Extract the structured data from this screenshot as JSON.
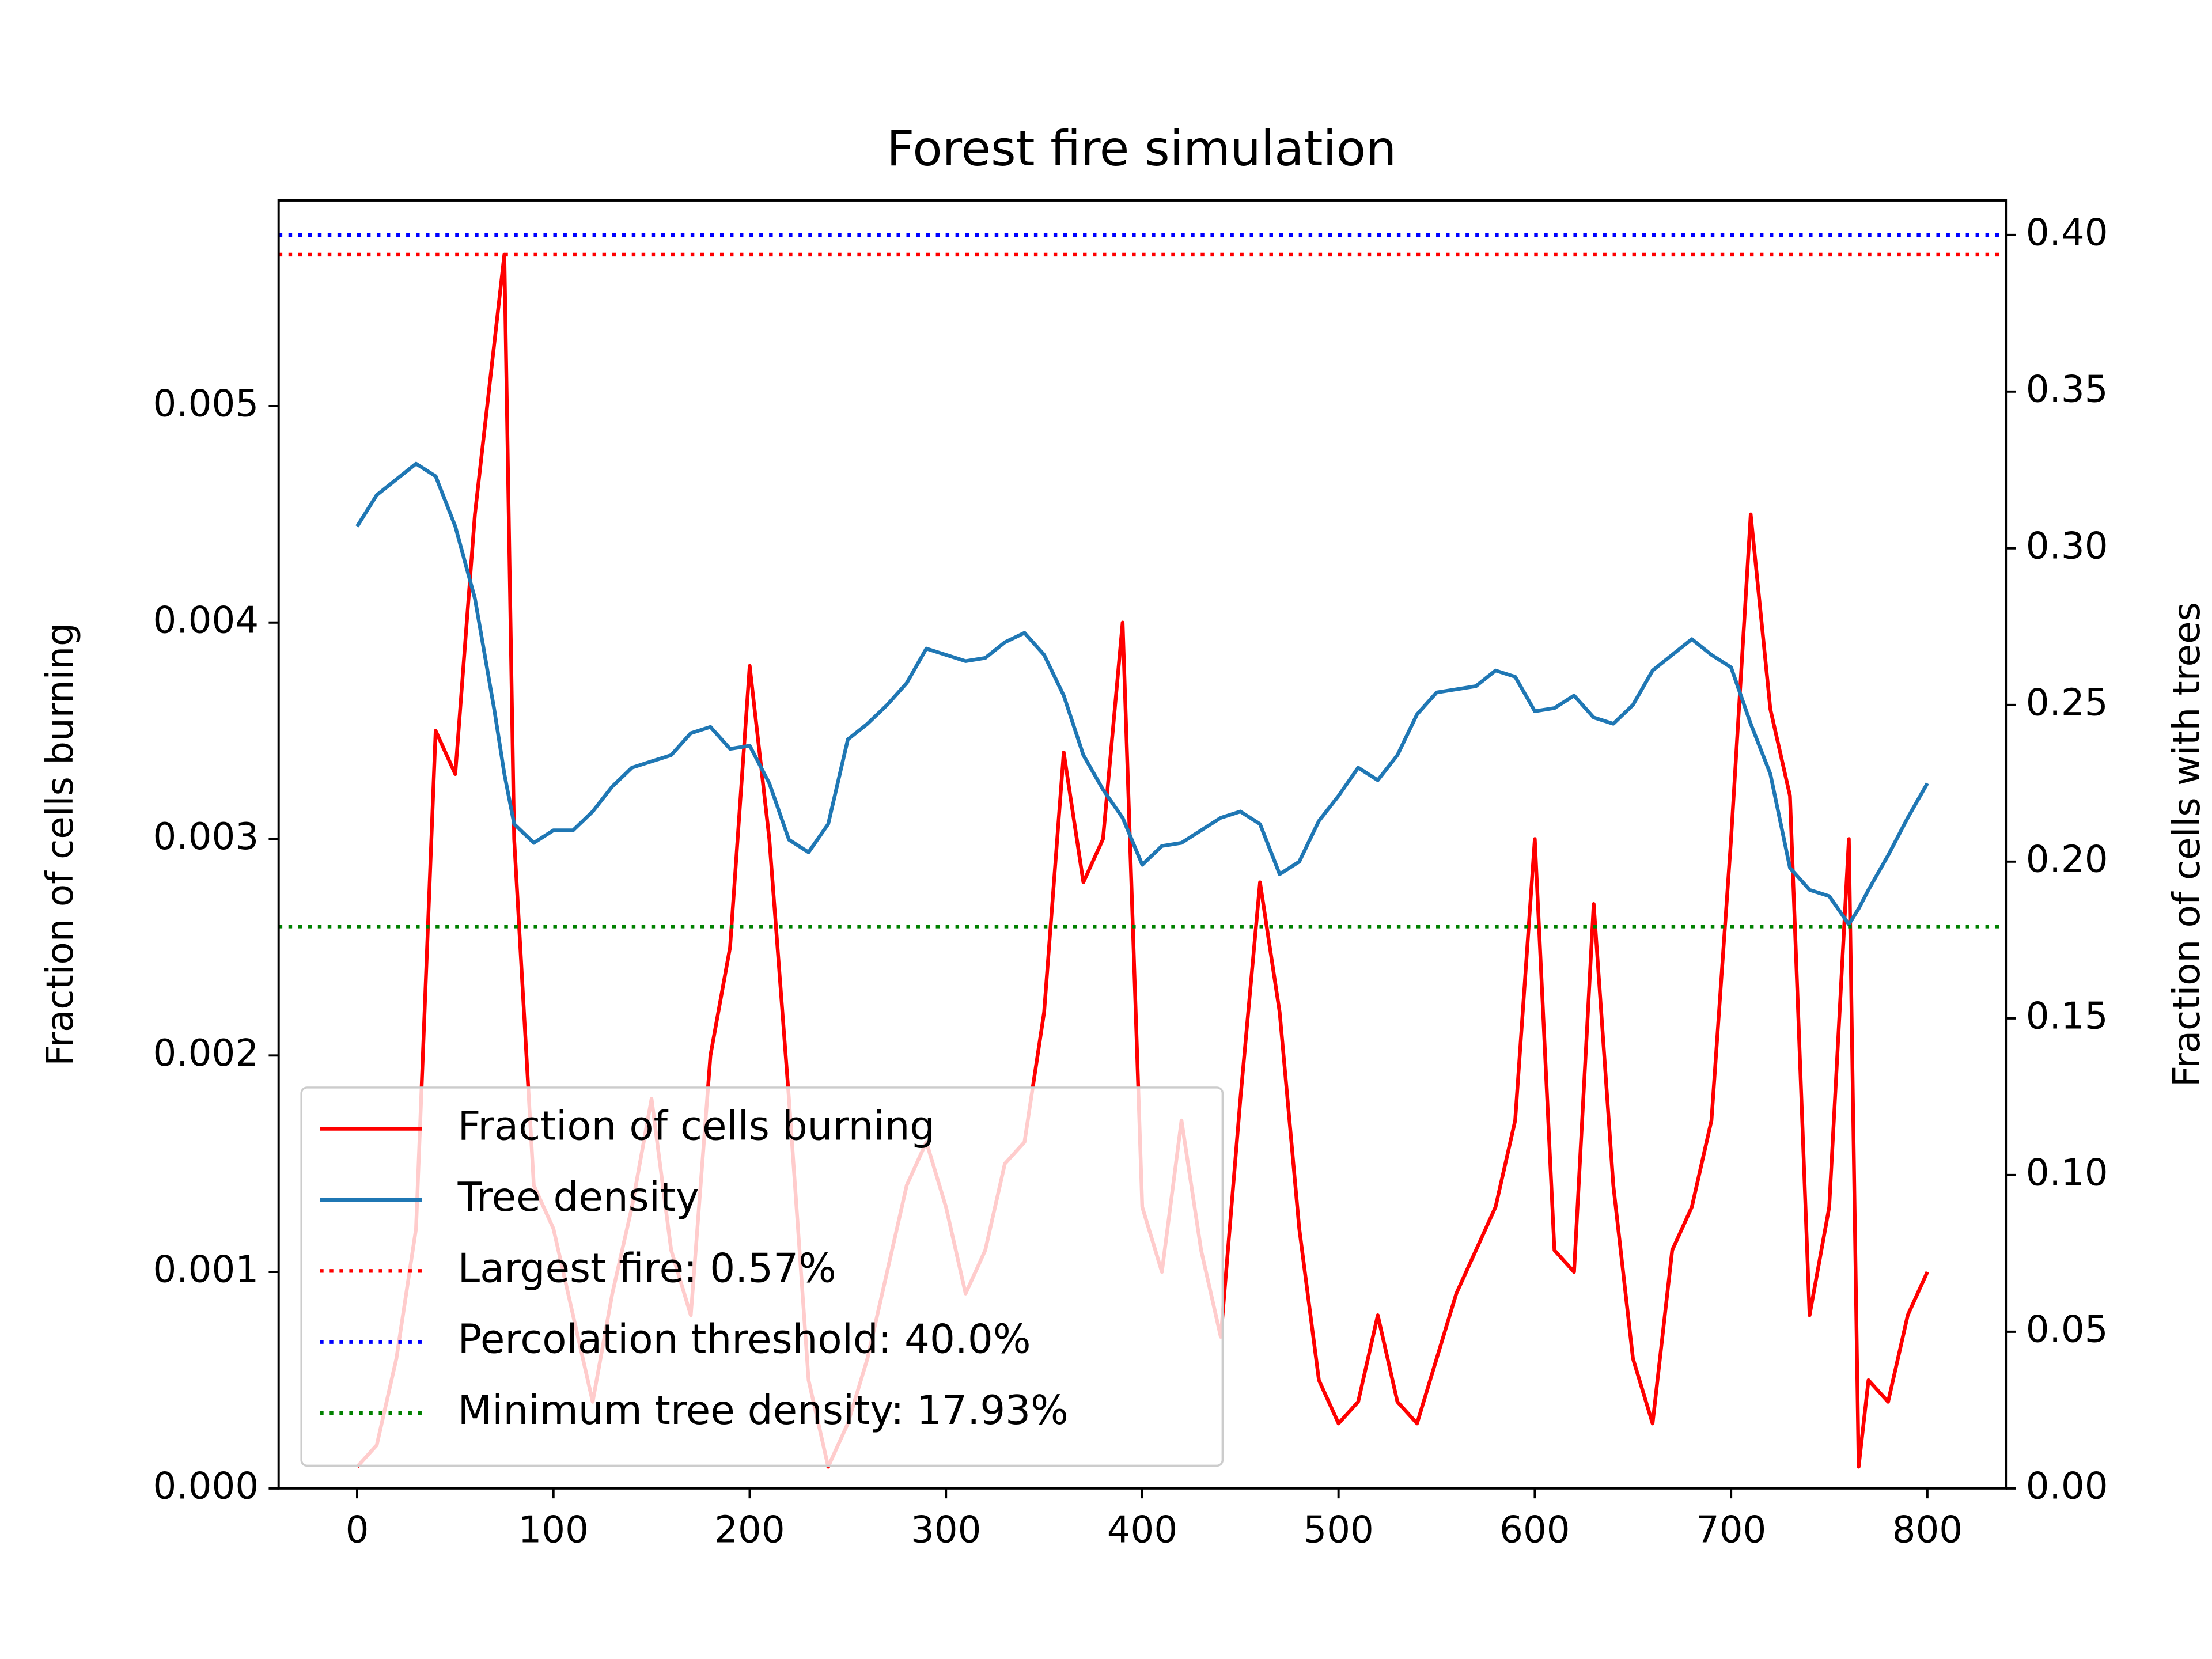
{
  "chart_data": {
    "type": "line",
    "title": "Forest fire simulation",
    "y_label": "Fraction of cells burning",
    "y2_label": "Fraction of cells with trees",
    "x": [
      0,
      10,
      20,
      30,
      40,
      50,
      60,
      70,
      75,
      80,
      90,
      100,
      110,
      120,
      130,
      140,
      150,
      160,
      170,
      180,
      190,
      200,
      210,
      220,
      230,
      240,
      250,
      260,
      270,
      280,
      290,
      300,
      310,
      320,
      330,
      340,
      350,
      360,
      370,
      380,
      390,
      400,
      410,
      420,
      430,
      440,
      450,
      460,
      470,
      480,
      490,
      500,
      510,
      520,
      530,
      540,
      550,
      560,
      570,
      580,
      590,
      600,
      610,
      620,
      630,
      640,
      650,
      660,
      670,
      680,
      690,
      700,
      710,
      720,
      730,
      740,
      750,
      760,
      765,
      770,
      780,
      790,
      800
    ],
    "series": [
      {
        "name": "Fraction of cells burning",
        "color": "#ff0000",
        "axis": "y",
        "values": [
          0.0001,
          0.0002,
          0.0006,
          0.0012,
          0.0035,
          0.0033,
          0.0045,
          0.0053,
          0.0057,
          0.003,
          0.0014,
          0.0012,
          0.0008,
          0.0004,
          0.0009,
          0.0013,
          0.0018,
          0.0011,
          0.0008,
          0.002,
          0.0025,
          0.0038,
          0.003,
          0.0018,
          0.0005,
          0.0001,
          0.0003,
          0.0006,
          0.001,
          0.0014,
          0.0016,
          0.0013,
          0.0009,
          0.0011,
          0.0015,
          0.0016,
          0.0022,
          0.0034,
          0.0028,
          0.003,
          0.004,
          0.0013,
          0.001,
          0.0017,
          0.0011,
          0.0007,
          0.0018,
          0.0028,
          0.0022,
          0.0012,
          0.0005,
          0.0003,
          0.0004,
          0.0008,
          0.0004,
          0.0003,
          0.0006,
          0.0009,
          0.0011,
          0.0013,
          0.0017,
          0.003,
          0.0011,
          0.001,
          0.0027,
          0.0014,
          0.0006,
          0.0003,
          0.0011,
          0.0013,
          0.0017,
          0.003,
          0.0045,
          0.0036,
          0.0032,
          0.0008,
          0.0013,
          0.003,
          0.0001,
          0.0005,
          0.0004,
          0.0008,
          0.001
        ]
      },
      {
        "name": "Tree density",
        "color": "#1f77b4",
        "axis": "y2",
        "values": [
          0.307,
          0.317,
          0.322,
          0.327,
          0.323,
          0.307,
          0.284,
          0.248,
          0.228,
          0.212,
          0.206,
          0.21,
          0.21,
          0.216,
          0.224,
          0.23,
          0.232,
          0.234,
          0.241,
          0.243,
          0.236,
          0.237,
          0.225,
          0.207,
          0.203,
          0.212,
          0.239,
          0.244,
          0.25,
          0.257,
          0.268,
          0.266,
          0.264,
          0.265,
          0.27,
          0.273,
          0.266,
          0.253,
          0.234,
          0.223,
          0.214,
          0.199,
          0.205,
          0.206,
          0.21,
          0.214,
          0.216,
          0.212,
          0.196,
          0.2,
          0.213,
          0.221,
          0.23,
          0.226,
          0.234,
          0.247,
          0.254,
          0.255,
          0.256,
          0.261,
          0.259,
          0.248,
          0.249,
          0.253,
          0.246,
          0.244,
          0.25,
          0.261,
          0.266,
          0.271,
          0.266,
          0.262,
          0.244,
          0.228,
          0.198,
          0.191,
          0.189,
          0.18,
          0.185,
          0.191,
          0.202,
          0.214,
          0.225
        ]
      }
    ],
    "hlines": [
      {
        "name": "Largest fire: 0.57%",
        "value": 0.0057,
        "color": "#ff0000",
        "axis": "y"
      },
      {
        "name": "Percolation threshold: 40.0%",
        "value": 0.4,
        "color": "#0000ff",
        "axis": "y2"
      },
      {
        "name": "Minimum tree density: 17.93%",
        "value": 0.1793,
        "color": "#008000",
        "axis": "y2"
      }
    ],
    "xlim": [
      -40,
      840
    ],
    "xticks": [
      0,
      100,
      200,
      300,
      400,
      500,
      600,
      700,
      800
    ],
    "ylim": [
      0,
      0.00595
    ],
    "yticks": [
      {
        "value": 0,
        "label": "0.000"
      },
      {
        "value": 0.001,
        "label": "0.001"
      },
      {
        "value": 0.002,
        "label": "0.002"
      },
      {
        "value": 0.003,
        "label": "0.003"
      },
      {
        "value": 0.004,
        "label": "0.004"
      },
      {
        "value": 0.005,
        "label": "0.005"
      }
    ],
    "y2lim": [
      0,
      0.411
    ],
    "y2ticks": [
      {
        "value": 0,
        "label": "0.00"
      },
      {
        "value": 0.05,
        "label": "0.05"
      },
      {
        "value": 0.1,
        "label": "0.10"
      },
      {
        "value": 0.15,
        "label": "0.15"
      },
      {
        "value": 0.2,
        "label": "0.20"
      },
      {
        "value": 0.25,
        "label": "0.25"
      },
      {
        "value": 0.3,
        "label": "0.30"
      },
      {
        "value": 0.35,
        "label": "0.35"
      },
      {
        "value": 0.4,
        "label": "0.40"
      }
    ],
    "legend": "lower left"
  }
}
